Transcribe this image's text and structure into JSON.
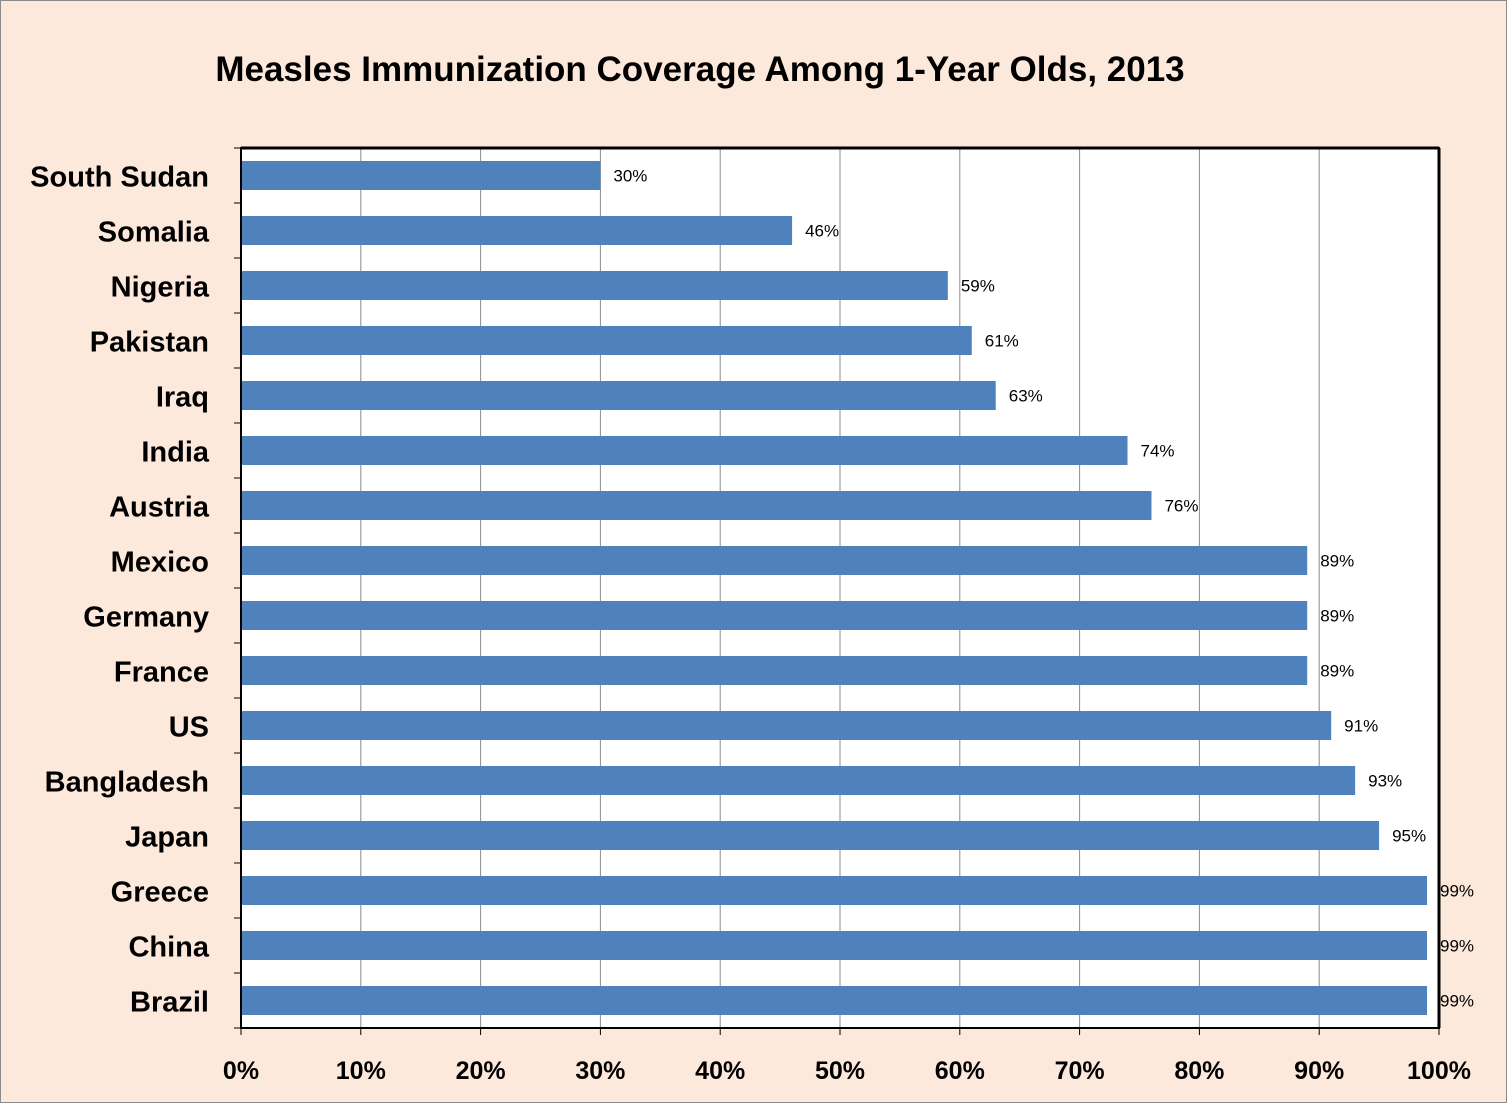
{
  "chart_data": {
    "type": "bar",
    "orientation": "horizontal",
    "title": "Measles Immunization Coverage Among 1-Year Olds, 2013",
    "xlabel": "",
    "ylabel": "",
    "categories": [
      "South Sudan",
      "Somalia",
      "Nigeria",
      "Pakistan",
      "Iraq",
      "India",
      "Austria",
      "Mexico",
      "Germany",
      "France",
      "US",
      "Bangladesh",
      "Japan",
      "Greece",
      "China",
      "Brazil"
    ],
    "values": [
      30,
      46,
      59,
      61,
      63,
      74,
      76,
      89,
      89,
      89,
      91,
      93,
      95,
      99,
      99,
      99
    ],
    "data_labels": [
      "30%",
      "46%",
      "59%",
      "61%",
      "63%",
      "74%",
      "76%",
      "89%",
      "89%",
      "89%",
      "91%",
      "93%",
      "95%",
      "99%",
      "99%",
      "99%"
    ],
    "xlim": [
      0,
      100
    ],
    "x_ticks": [
      "0%",
      "10%",
      "20%",
      "30%",
      "40%",
      "50%",
      "60%",
      "70%",
      "80%",
      "90%",
      "100%"
    ],
    "grid": "vertical",
    "legend": "none",
    "bar_color": "#4F81BD",
    "plot_background": "#FFFFFF",
    "page_background": "#FDE9DC"
  }
}
